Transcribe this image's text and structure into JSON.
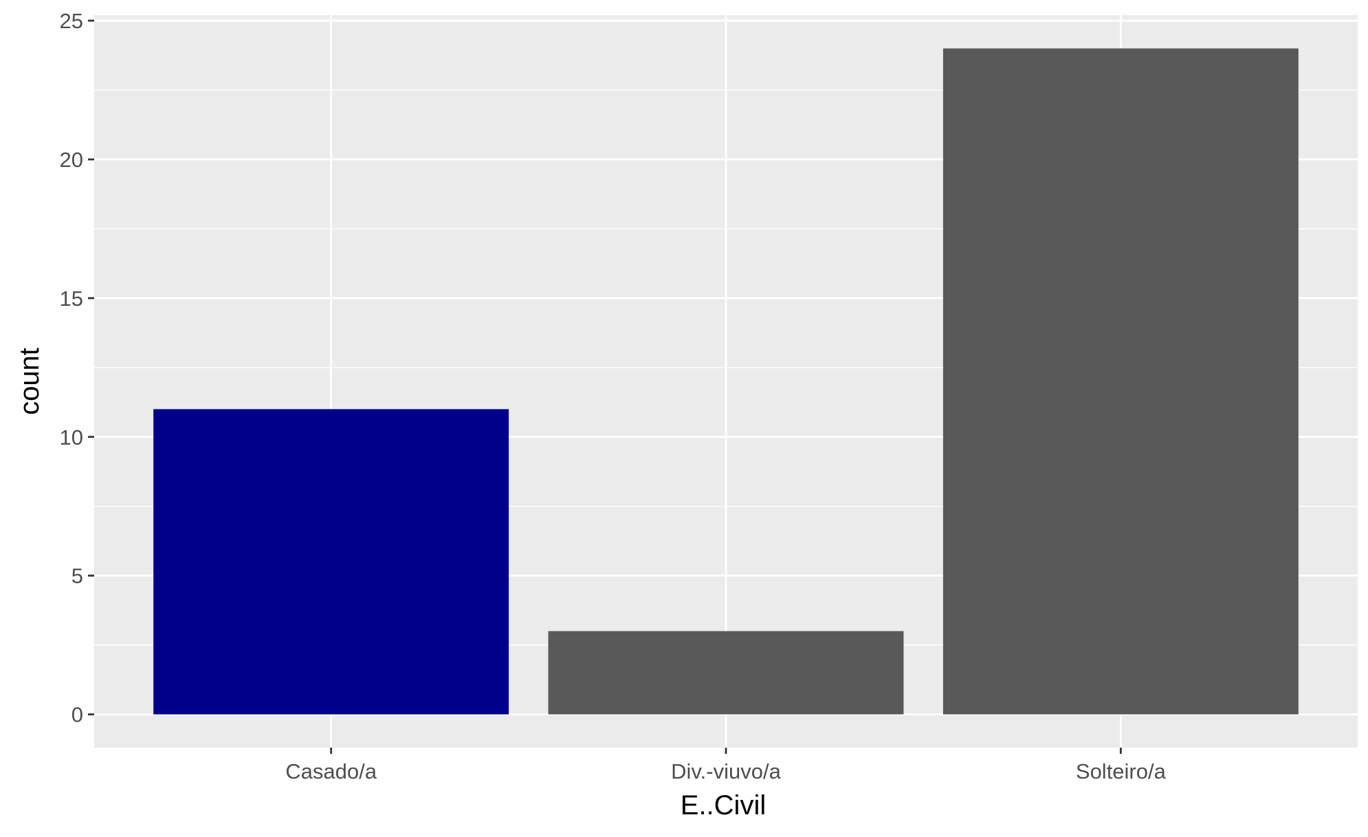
{
  "chart_data": {
    "type": "bar",
    "categories": [
      "Casado/a",
      "Div.-viuvo/a",
      "Solteiro/a"
    ],
    "values": [
      11,
      3,
      24
    ],
    "bar_colors": [
      "#00008B",
      "#595959",
      "#595959"
    ],
    "xlabel": "E..Civil",
    "ylabel": "count",
    "ylim": [
      -1.2,
      25.2
    ],
    "yticks": [
      0,
      5,
      10,
      15,
      20,
      25
    ],
    "grid": true,
    "panel_background": "#EBEBEB",
    "grid_color": "#FFFFFF",
    "tick_color": "#333333",
    "tick_label_color": "#4D4D4D"
  }
}
